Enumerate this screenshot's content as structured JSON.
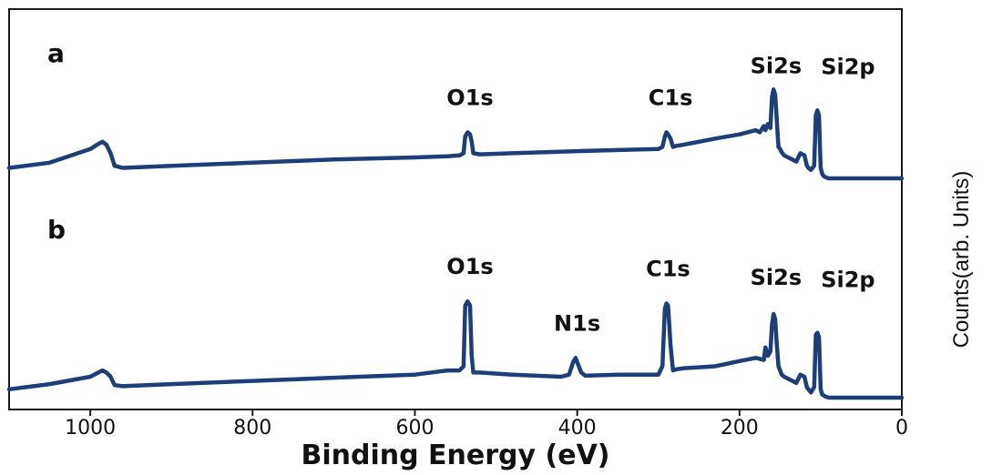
{
  "chart_data": {
    "type": "line",
    "xlabel": "Binding Energy (eV)",
    "ylabel": "Counts(arb. Units)",
    "xlim": [
      1100,
      0
    ],
    "x_reversed": true,
    "x_ticks": [
      1000,
      800,
      600,
      400,
      200,
      0
    ],
    "y_ticks": false,
    "grid": false,
    "panels": [
      {
        "label": "a",
        "series": [
          {
            "x": [
              1100,
              1050,
              1000,
              990,
              985,
              980,
              975,
              970,
              960,
              900,
              800,
              700,
              600,
              560,
              545,
              540,
              538,
              535,
              532,
              530,
              528,
              520,
              480,
              400,
              350,
              300,
              295,
              292,
              290,
              288,
              285,
              282,
              278,
              270,
              230,
              200,
              180,
              175,
              170,
              168,
              165,
              162,
              160,
              158,
              156,
              154,
              152,
              150,
              148,
              145,
              140,
              130,
              125,
              120,
              117,
              115,
              112,
              108,
              106,
              104,
              102,
              100,
              98,
              96,
              94,
              90,
              80,
              60,
              40,
              20,
              0
            ],
            "y": [
              0.1,
              0.15,
              0.28,
              0.33,
              0.35,
              0.32,
              0.24,
              0.12,
              0.1,
              0.12,
              0.15,
              0.18,
              0.2,
              0.21,
              0.22,
              0.24,
              0.4,
              0.44,
              0.42,
              0.35,
              0.24,
              0.23,
              0.24,
              0.26,
              0.27,
              0.28,
              0.3,
              0.4,
              0.44,
              0.42,
              0.38,
              0.3,
              0.31,
              0.32,
              0.38,
              0.42,
              0.46,
              0.44,
              0.5,
              0.46,
              0.52,
              0.48,
              0.78,
              0.85,
              0.8,
              0.55,
              0.3,
              0.28,
              0.25,
              0.22,
              0.2,
              0.16,
              0.24,
              0.22,
              0.12,
              0.1,
              0.08,
              0.12,
              0.6,
              0.65,
              0.6,
              0.1,
              0.04,
              0.02,
              0.01,
              0.0,
              0.0,
              0.0,
              0.0,
              0.0,
              0.0
            ]
          }
        ],
        "annotations": [
          {
            "text": "O1s",
            "x": 532
          },
          {
            "text": "C1s",
            "x": 285
          },
          {
            "text": "Si2s",
            "x": 155
          },
          {
            "text": "Si2p",
            "x": 100
          }
        ]
      },
      {
        "label": "b",
        "series": [
          {
            "x": [
              1100,
              1050,
              1000,
              990,
              985,
              980,
              975,
              970,
              960,
              900,
              800,
              700,
              600,
              560,
              545,
              540,
              538,
              535,
              532,
              530,
              528,
              520,
              480,
              420,
              410,
              405,
              402,
              400,
              398,
              395,
              390,
              350,
              300,
              295,
              292,
              290,
              288,
              285,
              282,
              278,
              270,
              230,
              200,
              180,
              175,
              170,
              168,
              165,
              162,
              160,
              158,
              156,
              154,
              152,
              150,
              148,
              145,
              140,
              130,
              125,
              120,
              117,
              115,
              112,
              108,
              106,
              104,
              102,
              100,
              98,
              96,
              94,
              90,
              80,
              60,
              40,
              20,
              0
            ],
            "y": [
              0.08,
              0.13,
              0.2,
              0.24,
              0.26,
              0.24,
              0.2,
              0.12,
              0.11,
              0.13,
              0.16,
              0.19,
              0.22,
              0.26,
              0.26,
              0.3,
              0.88,
              0.92,
              0.88,
              0.4,
              0.24,
              0.24,
              0.22,
              0.2,
              0.22,
              0.34,
              0.38,
              0.34,
              0.3,
              0.24,
              0.21,
              0.22,
              0.22,
              0.3,
              0.85,
              0.9,
              0.88,
              0.5,
              0.26,
              0.27,
              0.28,
              0.3,
              0.35,
              0.38,
              0.37,
              0.36,
              0.48,
              0.4,
              0.44,
              0.7,
              0.8,
              0.75,
              0.5,
              0.3,
              0.26,
              0.22,
              0.2,
              0.18,
              0.14,
              0.22,
              0.2,
              0.1,
              0.08,
              0.05,
              0.1,
              0.6,
              0.62,
              0.58,
              0.08,
              0.03,
              0.02,
              0.01,
              0.0,
              0.0,
              0.0,
              0.0,
              0.0,
              0.0
            ]
          }
        ],
        "annotations": [
          {
            "text": "O1s",
            "x": 532
          },
          {
            "text": "N1s",
            "x": 400
          },
          {
            "text": "C1s",
            "x": 288
          },
          {
            "text": "Si2s",
            "x": 155
          },
          {
            "text": "Si2p",
            "x": 100
          }
        ]
      }
    ]
  },
  "colors": {
    "line": "#1f3e78",
    "axis": "#1a1a1a",
    "text": "#111111"
  }
}
